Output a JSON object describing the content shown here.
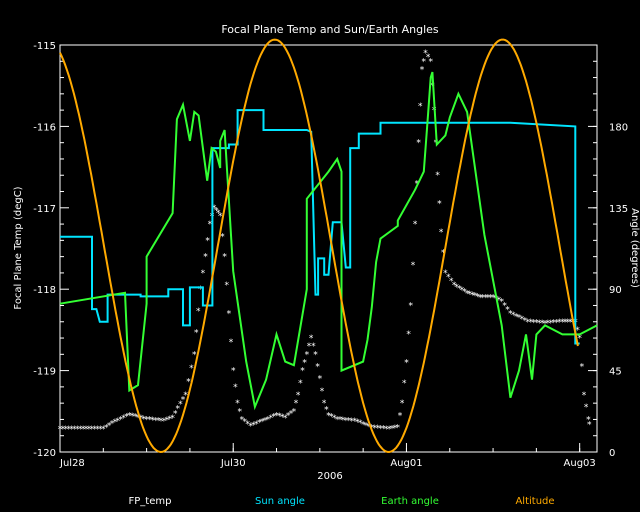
{
  "chart_data": {
    "type": "line",
    "title": "Focal Plane Temp and Sun/Earth Angles",
    "xlabel": "2006",
    "ylabel_left": "Focal Plane Temp (degC)",
    "ylabel_right": "Angle (degrees)",
    "x_ticks": [
      "Jul28",
      "Jul30",
      "Aug01",
      "Aug03"
    ],
    "x_tick_days": [
      0,
      2,
      4,
      6
    ],
    "xlim_days": [
      0,
      6.2
    ],
    "ylim_left": [
      -120,
      -115
    ],
    "left_ticks": [
      "-115",
      "-116",
      "-117",
      "-118",
      "-119",
      "-120"
    ],
    "ylim_right": [
      0,
      225
    ],
    "right_ticks": [
      "0",
      "45",
      "90",
      "135",
      "180"
    ],
    "grid": false,
    "legend_placement": "bottom",
    "series": [
      {
        "name": "FP_temp",
        "color": "#ffffff",
        "axis": "left",
        "style": "markers",
        "points": [
          [
            0,
            -119.72
          ],
          [
            0.3,
            -119.72
          ],
          [
            0.5,
            -119.72
          ],
          [
            0.6,
            -119.65
          ],
          [
            0.8,
            -119.55
          ],
          [
            1.0,
            -119.6
          ],
          [
            1.2,
            -119.62
          ],
          [
            1.3,
            -119.58
          ],
          [
            1.45,
            -119.3
          ],
          [
            1.55,
            -118.8
          ],
          [
            1.62,
            -118.0
          ],
          [
            1.68,
            -117.6
          ],
          [
            1.73,
            -117.2
          ],
          [
            1.78,
            -117.0
          ],
          [
            1.85,
            -117.1
          ],
          [
            1.9,
            -117.6
          ],
          [
            1.95,
            -118.3
          ],
          [
            2.0,
            -119.0
          ],
          [
            2.05,
            -119.4
          ],
          [
            2.1,
            -119.6
          ],
          [
            2.2,
            -119.68
          ],
          [
            2.4,
            -119.6
          ],
          [
            2.5,
            -119.55
          ],
          [
            2.6,
            -119.58
          ],
          [
            2.7,
            -119.5
          ],
          [
            2.75,
            -119.3
          ],
          [
            2.8,
            -119.0
          ],
          [
            2.85,
            -118.8
          ],
          [
            2.9,
            -118.6
          ],
          [
            2.95,
            -118.8
          ],
          [
            3.0,
            -119.1
          ],
          [
            3.05,
            -119.4
          ],
          [
            3.1,
            -119.55
          ],
          [
            3.2,
            -119.6
          ],
          [
            3.4,
            -119.62
          ],
          [
            3.6,
            -119.7
          ],
          [
            3.8,
            -119.72
          ],
          [
            3.9,
            -119.7
          ],
          [
            3.95,
            -119.4
          ],
          [
            4.0,
            -118.9
          ],
          [
            4.05,
            -118.2
          ],
          [
            4.1,
            -117.2
          ],
          [
            4.14,
            -116.2
          ],
          [
            4.18,
            -115.3
          ],
          [
            4.22,
            -115.1
          ],
          [
            4.28,
            -115.2
          ],
          [
            4.32,
            -115.8
          ],
          [
            4.36,
            -116.6
          ],
          [
            4.4,
            -117.3
          ],
          [
            4.45,
            -117.8
          ],
          [
            4.55,
            -117.95
          ],
          [
            4.7,
            -118.05
          ],
          [
            4.85,
            -118.1
          ],
          [
            5.0,
            -118.1
          ],
          [
            5.1,
            -118.15
          ],
          [
            5.2,
            -118.3
          ],
          [
            5.4,
            -118.4
          ],
          [
            5.6,
            -118.42
          ],
          [
            5.8,
            -118.4
          ],
          [
            5.95,
            -118.4
          ],
          [
            6.0,
            -118.6
          ],
          [
            6.05,
            -119.3
          ],
          [
            6.1,
            -119.6
          ],
          [
            6.12,
            -119.72
          ]
        ]
      },
      {
        "name": "Sun angle",
        "color": "#00e5ff",
        "axis": "right",
        "style": "line",
        "points": [
          [
            0,
            119
          ],
          [
            0.37,
            119
          ],
          [
            0.37,
            79
          ],
          [
            0.42,
            79
          ],
          [
            0.46,
            72
          ],
          [
            0.55,
            72
          ],
          [
            0.55,
            87
          ],
          [
            0.93,
            87
          ],
          [
            0.93,
            86
          ],
          [
            1.25,
            86
          ],
          [
            1.25,
            90
          ],
          [
            1.42,
            90
          ],
          [
            1.42,
            70
          ],
          [
            1.5,
            70
          ],
          [
            1.5,
            91
          ],
          [
            1.65,
            91
          ],
          [
            1.65,
            81
          ],
          [
            1.76,
            81
          ],
          [
            1.76,
            168
          ],
          [
            1.95,
            168
          ],
          [
            1.95,
            170
          ],
          [
            2.05,
            170
          ],
          [
            2.05,
            189
          ],
          [
            2.35,
            189
          ],
          [
            2.35,
            178
          ],
          [
            2.85,
            178
          ],
          [
            2.9,
            177
          ],
          [
            2.95,
            87
          ],
          [
            2.98,
            87
          ],
          [
            2.98,
            107
          ],
          [
            3.05,
            107
          ],
          [
            3.05,
            98
          ],
          [
            3.1,
            98
          ],
          [
            3.15,
            127
          ],
          [
            3.25,
            127
          ],
          [
            3.3,
            102
          ],
          [
            3.35,
            102
          ],
          [
            3.35,
            168
          ],
          [
            3.45,
            168
          ],
          [
            3.45,
            176
          ],
          [
            3.7,
            176
          ],
          [
            3.7,
            182
          ],
          [
            4.5,
            182
          ],
          [
            5.2,
            182
          ],
          [
            5.95,
            180
          ],
          [
            5.95,
            60
          ],
          [
            6.0,
            60
          ]
        ]
      },
      {
        "name": "Earth angle",
        "color": "#33ff33",
        "axis": "right",
        "style": "line",
        "points": [
          [
            0,
            82
          ],
          [
            0.75,
            88
          ],
          [
            0.8,
            34
          ],
          [
            0.9,
            37
          ],
          [
            1.0,
            82
          ],
          [
            1.0,
            108
          ],
          [
            1.3,
            132
          ],
          [
            1.35,
            184
          ],
          [
            1.42,
            192
          ],
          [
            1.5,
            172
          ],
          [
            1.55,
            188
          ],
          [
            1.6,
            186
          ],
          [
            1.7,
            150
          ],
          [
            1.75,
            168
          ],
          [
            1.8,
            166
          ],
          [
            1.85,
            157
          ],
          [
            1.85,
            172
          ],
          [
            1.9,
            178
          ],
          [
            2.0,
            100
          ],
          [
            2.15,
            50
          ],
          [
            2.25,
            25
          ],
          [
            2.38,
            40
          ],
          [
            2.5,
            65
          ],
          [
            2.6,
            50
          ],
          [
            2.7,
            48
          ],
          [
            2.85,
            90
          ],
          [
            2.85,
            140
          ],
          [
            3.1,
            155
          ],
          [
            3.2,
            162
          ],
          [
            3.25,
            155
          ],
          [
            3.25,
            45
          ],
          [
            3.5,
            50
          ],
          [
            3.55,
            62
          ],
          [
            3.6,
            80
          ],
          [
            3.65,
            105
          ],
          [
            3.7,
            118
          ],
          [
            3.9,
            125
          ],
          [
            3.9,
            128
          ],
          [
            4.1,
            145
          ],
          [
            4.2,
            155
          ],
          [
            4.25,
            187
          ],
          [
            4.28,
            207
          ],
          [
            4.3,
            210
          ],
          [
            4.35,
            170
          ],
          [
            4.45,
            175
          ],
          [
            4.5,
            185
          ],
          [
            4.6,
            198
          ],
          [
            4.7,
            188
          ],
          [
            4.9,
            120
          ],
          [
            5.1,
            70
          ],
          [
            5.2,
            30
          ],
          [
            5.3,
            45
          ],
          [
            5.38,
            65
          ],
          [
            5.45,
            40
          ],
          [
            5.5,
            65
          ],
          [
            5.6,
            70
          ],
          [
            5.8,
            65
          ],
          [
            6.0,
            65
          ],
          [
            6.2,
            70
          ]
        ]
      },
      {
        "name": "Altitude",
        "color": "#ffaa00",
        "axis": "right",
        "style": "curve",
        "period_days": 2.63,
        "peak_day": 2.48,
        "min_value": 0,
        "max_value": 228,
        "x_end_day": 5.98
      }
    ]
  }
}
